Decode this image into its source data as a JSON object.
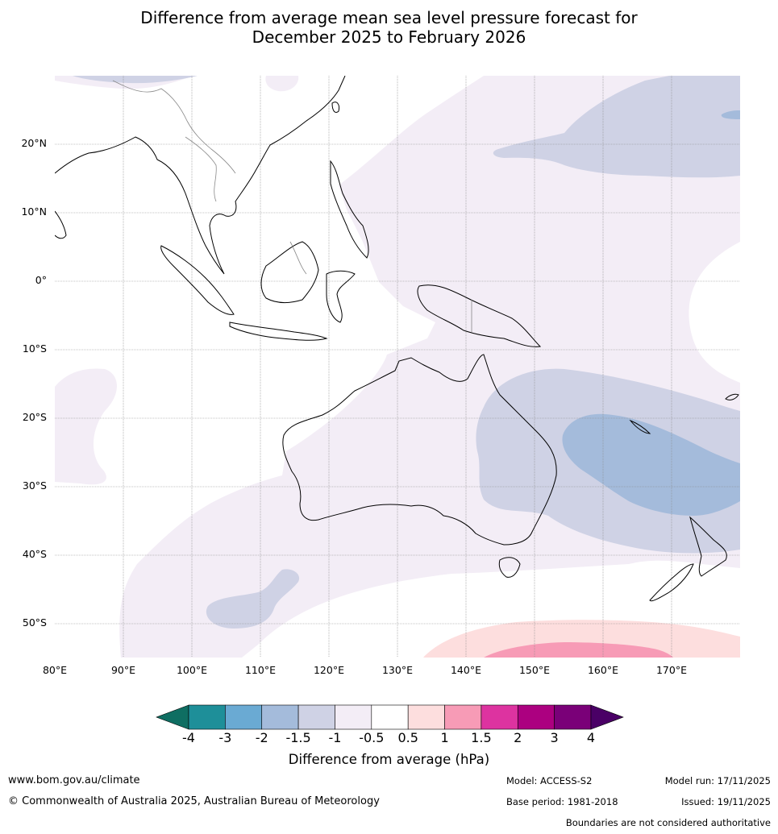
{
  "title": {
    "line1": "Difference from average mean sea level pressure forecast for",
    "line2": "December 2025 to February 2026"
  },
  "map": {
    "lat_labels": [
      "20°N",
      "10°N",
      "0°",
      "10°S",
      "20°S",
      "30°S",
      "40°S",
      "50°S"
    ],
    "lon_labels": [
      "80°E",
      "90°E",
      "100°E",
      "110°E",
      "120°E",
      "130°E",
      "140°E",
      "150°E",
      "160°E",
      "170°E"
    ],
    "extent": {
      "lon_min": 80,
      "lon_max": 180,
      "lat_min": -55,
      "lat_max": 30
    },
    "anomaly_regions": [
      {
        "name": "north-pacific-high",
        "category": "-1.5 to -1"
      },
      {
        "name": "western-pacific-low",
        "category": "-0.5 to -1"
      },
      {
        "name": "tasman-sea",
        "category": "-2 to -1.5"
      },
      {
        "name": "southern-ocean",
        "category": "1 to 1.5"
      }
    ]
  },
  "colorbar": {
    "ticks": [
      "-4",
      "-3",
      "-2",
      "-1.5",
      "-1",
      "-0.5",
      "0.5",
      "1",
      "1.5",
      "2",
      "3",
      "4"
    ],
    "colors": [
      "#0f6e62",
      "#1e8f99",
      "#6aaad3",
      "#a4bbdb",
      "#cfd2e5",
      "#f3edf6",
      "#ffffff",
      "#fddede",
      "#f79bb6",
      "#dd33a0",
      "#ac0080",
      "#7a0078",
      "#4a0066"
    ],
    "label": "Difference from average (hPa)"
  },
  "footer": {
    "website": "www.bom.gov.au/climate",
    "copyright": "© Commonwealth of Australia 2025, Australian Bureau of Meteorology",
    "model": "Model: ACCESS-S2",
    "model_run": "Model run: 17/11/2025",
    "base_period": "Base period: 1981-2018",
    "issued": "Issued: 19/11/2025",
    "disclaimer": "Boundaries are not considered authoritative"
  }
}
